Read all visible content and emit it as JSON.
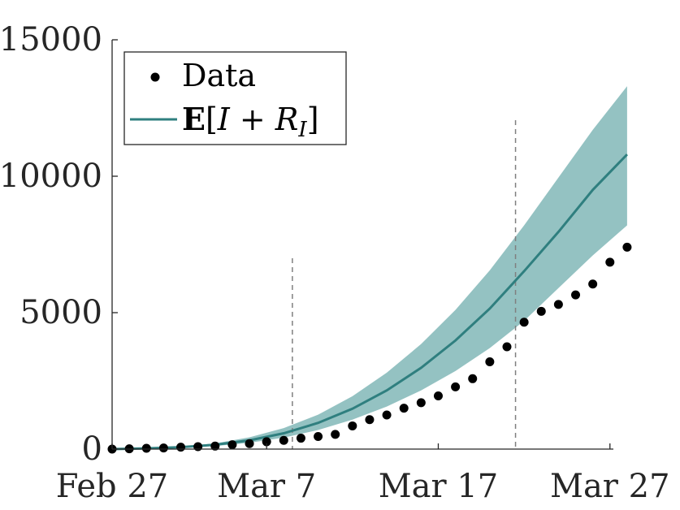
{
  "chart_data": {
    "type": "line",
    "title": "",
    "xlabel": "",
    "ylabel": "",
    "x_ticks": [
      "Feb 27",
      "Mar 7",
      "Mar 17",
      "Mar 27"
    ],
    "x_tick_days": [
      0,
      9,
      19,
      29
    ],
    "ylim": [
      0,
      15000
    ],
    "y_ticks": [
      0,
      5000,
      10000,
      15000
    ],
    "y_tick_labels": [
      "0",
      "5000",
      "10000",
      "15000"
    ],
    "grid": false,
    "legend": {
      "placement": "top-left",
      "entries": [
        {
          "label": "Data",
          "type": "marker"
        },
        {
          "label": "\u0012 [I + R_I]",
          "type": "line"
        }
      ]
    },
    "vertical_lines_days": [
      10.5,
      23.5
    ],
    "series": [
      {
        "name": "Data",
        "kind": "scatter",
        "color": "#000000",
        "points": [
          [
            0,
            0
          ],
          [
            1,
            10
          ],
          [
            2,
            30
          ],
          [
            3,
            40
          ],
          [
            4,
            70
          ],
          [
            5,
            90
          ],
          [
            6,
            110
          ],
          [
            7,
            160
          ],
          [
            8,
            200
          ],
          [
            9,
            270
          ],
          [
            10,
            320
          ],
          [
            11,
            400
          ],
          [
            12,
            460
          ],
          [
            13,
            540
          ],
          [
            14,
            850
          ],
          [
            15,
            1080
          ],
          [
            16,
            1250
          ],
          [
            17,
            1500
          ],
          [
            18,
            1700
          ],
          [
            19,
            1950
          ],
          [
            20,
            2280
          ],
          [
            21,
            2580
          ],
          [
            22,
            3200
          ],
          [
            23,
            3750
          ],
          [
            24,
            4650
          ],
          [
            25,
            5050
          ],
          [
            26,
            5300
          ],
          [
            27,
            5650
          ],
          [
            28,
            6050
          ],
          [
            29,
            6850
          ],
          [
            30,
            7400
          ]
        ]
      },
      {
        "name": "\u0012 [I + R_I]",
        "kind": "line_with_band",
        "color": "#2f7f7f",
        "band_color": "#94c2c2",
        "points": [
          [
            0,
            0
          ],
          [
            2,
            25
          ],
          [
            4,
            70
          ],
          [
            6,
            160
          ],
          [
            8,
            320
          ],
          [
            10,
            580
          ],
          [
            12,
            960
          ],
          [
            14,
            1480
          ],
          [
            16,
            2150
          ],
          [
            18,
            2980
          ],
          [
            20,
            3980
          ],
          [
            22,
            5150
          ],
          [
            24,
            6520
          ],
          [
            26,
            7960
          ],
          [
            28,
            9500
          ],
          [
            30,
            10800
          ]
        ],
        "band_upper": [
          [
            0,
            0
          ],
          [
            2,
            30
          ],
          [
            4,
            90
          ],
          [
            6,
            210
          ],
          [
            8,
            430
          ],
          [
            10,
            770
          ],
          [
            12,
            1260
          ],
          [
            14,
            1940
          ],
          [
            16,
            2800
          ],
          [
            18,
            3850
          ],
          [
            20,
            5100
          ],
          [
            22,
            6550
          ],
          [
            24,
            8200
          ],
          [
            26,
            9950
          ],
          [
            28,
            11700
          ],
          [
            30,
            13300
          ]
        ],
        "band_lower": [
          [
            0,
            0
          ],
          [
            2,
            18
          ],
          [
            4,
            50
          ],
          [
            6,
            110
          ],
          [
            8,
            230
          ],
          [
            10,
            420
          ],
          [
            12,
            700
          ],
          [
            14,
            1080
          ],
          [
            16,
            1560
          ],
          [
            18,
            2150
          ],
          [
            20,
            2860
          ],
          [
            22,
            3700
          ],
          [
            24,
            4700
          ],
          [
            26,
            5900
          ],
          [
            28,
            7100
          ],
          [
            30,
            8200
          ]
        ]
      }
    ]
  }
}
